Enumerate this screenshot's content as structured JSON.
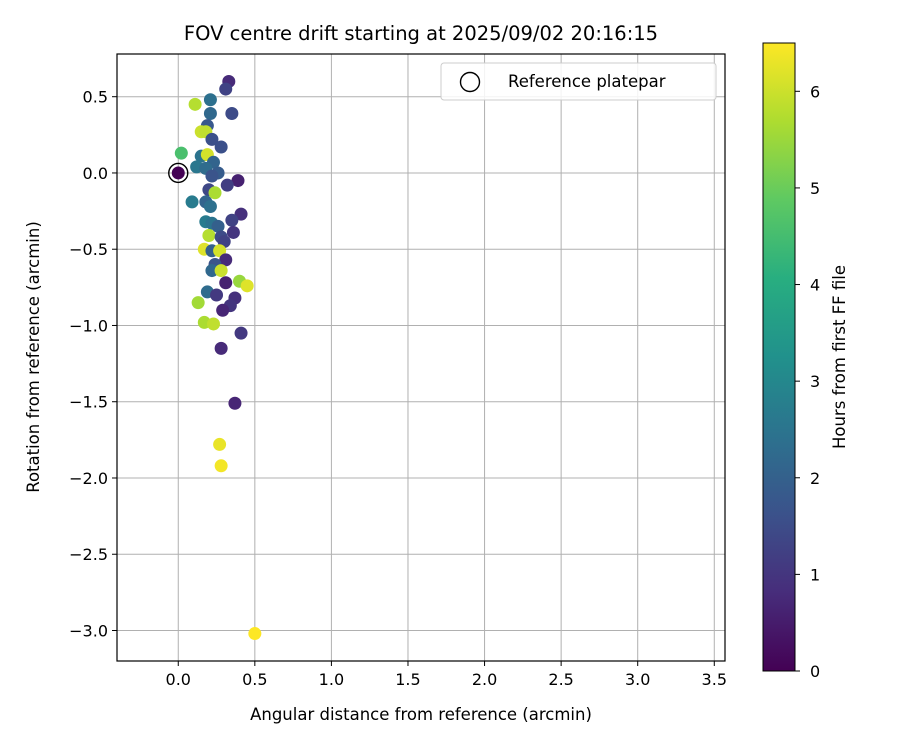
{
  "chart_data": {
    "type": "scatter",
    "title": "FOV centre drift starting at 2025/09/02 20:16:15",
    "xlabel": "Angular distance from reference (arcmin)",
    "ylabel": "Rotation from reference (arcmin)",
    "xlim": [
      -0.4,
      3.57
    ],
    "ylim": [
      -3.2,
      0.78
    ],
    "xticks": [
      0.0,
      0.5,
      1.0,
      1.5,
      2.0,
      2.5,
      3.0,
      3.5
    ],
    "xtick_labels": [
      "0.0",
      "0.5",
      "1.0",
      "1.5",
      "2.0",
      "2.5",
      "3.0",
      "3.5"
    ],
    "yticks": [
      0.5,
      0.0,
      -0.5,
      -1.0,
      -1.5,
      -2.0,
      -2.5,
      -3.0
    ],
    "ytick_labels": [
      "0.5",
      "0.0",
      "−0.5",
      "−1.0",
      "−1.5",
      "−2.0",
      "−2.5",
      "−3.0"
    ],
    "grid": true,
    "colormap": "viridis",
    "colorbar": {
      "label": "Hours from first FF file",
      "range": [
        0,
        6.5
      ],
      "ticks": [
        0,
        1,
        2,
        3,
        4,
        5,
        6
      ],
      "tick_labels": [
        "0",
        "1",
        "2",
        "3",
        "4",
        "5",
        "6"
      ]
    },
    "legend": {
      "position": "upper-right",
      "entries": [
        {
          "label": "Reference platepar",
          "marker": "open-circle"
        }
      ]
    },
    "reference_point": {
      "x": 0.0,
      "y": 0.0
    },
    "points": [
      {
        "x": 0.33,
        "y": 0.6,
        "t": 0.8
      },
      {
        "x": 0.31,
        "y": 0.55,
        "t": 1.3
      },
      {
        "x": 0.21,
        "y": 0.48,
        "t": 2.4
      },
      {
        "x": 0.11,
        "y": 0.45,
        "t": 5.8
      },
      {
        "x": 0.21,
        "y": 0.39,
        "t": 2.2
      },
      {
        "x": 0.35,
        "y": 0.39,
        "t": 1.5
      },
      {
        "x": 0.19,
        "y": 0.31,
        "t": 1.8
      },
      {
        "x": 0.15,
        "y": 0.27,
        "t": 6.0
      },
      {
        "x": 0.18,
        "y": 0.27,
        "t": 5.9
      },
      {
        "x": 0.22,
        "y": 0.22,
        "t": 1.6
      },
      {
        "x": 0.28,
        "y": 0.17,
        "t": 1.6
      },
      {
        "x": 0.02,
        "y": 0.13,
        "t": 4.6
      },
      {
        "x": 0.15,
        "y": 0.11,
        "t": 2.5
      },
      {
        "x": 0.19,
        "y": 0.12,
        "t": 6.1
      },
      {
        "x": 0.23,
        "y": 0.07,
        "t": 2.1
      },
      {
        "x": 0.12,
        "y": 0.04,
        "t": 2.6
      },
      {
        "x": 0.18,
        "y": 0.03,
        "t": 2.3
      },
      {
        "x": 0.26,
        "y": 0.0,
        "t": 1.9
      },
      {
        "x": 0.22,
        "y": -0.02,
        "t": 1.7
      },
      {
        "x": 0.0,
        "y": 0.0,
        "t": 0.0
      },
      {
        "x": 0.39,
        "y": -0.05,
        "t": 0.6
      },
      {
        "x": 0.32,
        "y": -0.08,
        "t": 1.2
      },
      {
        "x": 0.2,
        "y": -0.11,
        "t": 1.4
      },
      {
        "x": 0.24,
        "y": -0.13,
        "t": 5.7
      },
      {
        "x": 0.09,
        "y": -0.19,
        "t": 2.7
      },
      {
        "x": 0.18,
        "y": -0.19,
        "t": 2.1
      },
      {
        "x": 0.21,
        "y": -0.22,
        "t": 2.4
      },
      {
        "x": 0.41,
        "y": -0.27,
        "t": 0.9
      },
      {
        "x": 0.35,
        "y": -0.31,
        "t": 1.3
      },
      {
        "x": 0.18,
        "y": -0.32,
        "t": 2.7
      },
      {
        "x": 0.22,
        "y": -0.33,
        "t": 2.5
      },
      {
        "x": 0.26,
        "y": -0.35,
        "t": 2.0
      },
      {
        "x": 0.36,
        "y": -0.39,
        "t": 1.0
      },
      {
        "x": 0.2,
        "y": -0.41,
        "t": 5.8
      },
      {
        "x": 0.28,
        "y": -0.42,
        "t": 1.5
      },
      {
        "x": 0.3,
        "y": -0.45,
        "t": 1.3
      },
      {
        "x": 0.17,
        "y": -0.5,
        "t": 6.2
      },
      {
        "x": 0.22,
        "y": -0.51,
        "t": 2.0
      },
      {
        "x": 0.27,
        "y": -0.51,
        "t": 6.1
      },
      {
        "x": 0.31,
        "y": -0.57,
        "t": 0.8
      },
      {
        "x": 0.24,
        "y": -0.6,
        "t": 1.7
      },
      {
        "x": 0.22,
        "y": -0.64,
        "t": 2.2
      },
      {
        "x": 0.28,
        "y": -0.64,
        "t": 6.0
      },
      {
        "x": 0.31,
        "y": -0.72,
        "t": 0.6
      },
      {
        "x": 0.4,
        "y": -0.71,
        "t": 5.5
      },
      {
        "x": 0.45,
        "y": -0.74,
        "t": 6.2
      },
      {
        "x": 0.19,
        "y": -0.78,
        "t": 2.3
      },
      {
        "x": 0.25,
        "y": -0.8,
        "t": 1.1
      },
      {
        "x": 0.37,
        "y": -0.82,
        "t": 0.9
      },
      {
        "x": 0.13,
        "y": -0.85,
        "t": 5.6
      },
      {
        "x": 0.34,
        "y": -0.87,
        "t": 1.0
      },
      {
        "x": 0.29,
        "y": -0.9,
        "t": 0.7
      },
      {
        "x": 0.17,
        "y": -0.98,
        "t": 5.7
      },
      {
        "x": 0.23,
        "y": -0.99,
        "t": 5.9
      },
      {
        "x": 0.41,
        "y": -1.05,
        "t": 1.1
      },
      {
        "x": 0.28,
        "y": -1.15,
        "t": 0.8
      },
      {
        "x": 0.37,
        "y": -1.51,
        "t": 0.7
      },
      {
        "x": 0.27,
        "y": -1.78,
        "t": 6.3
      },
      {
        "x": 0.28,
        "y": -1.92,
        "t": 6.4
      },
      {
        "x": 0.5,
        "y": -3.02,
        "t": 6.5
      }
    ]
  }
}
